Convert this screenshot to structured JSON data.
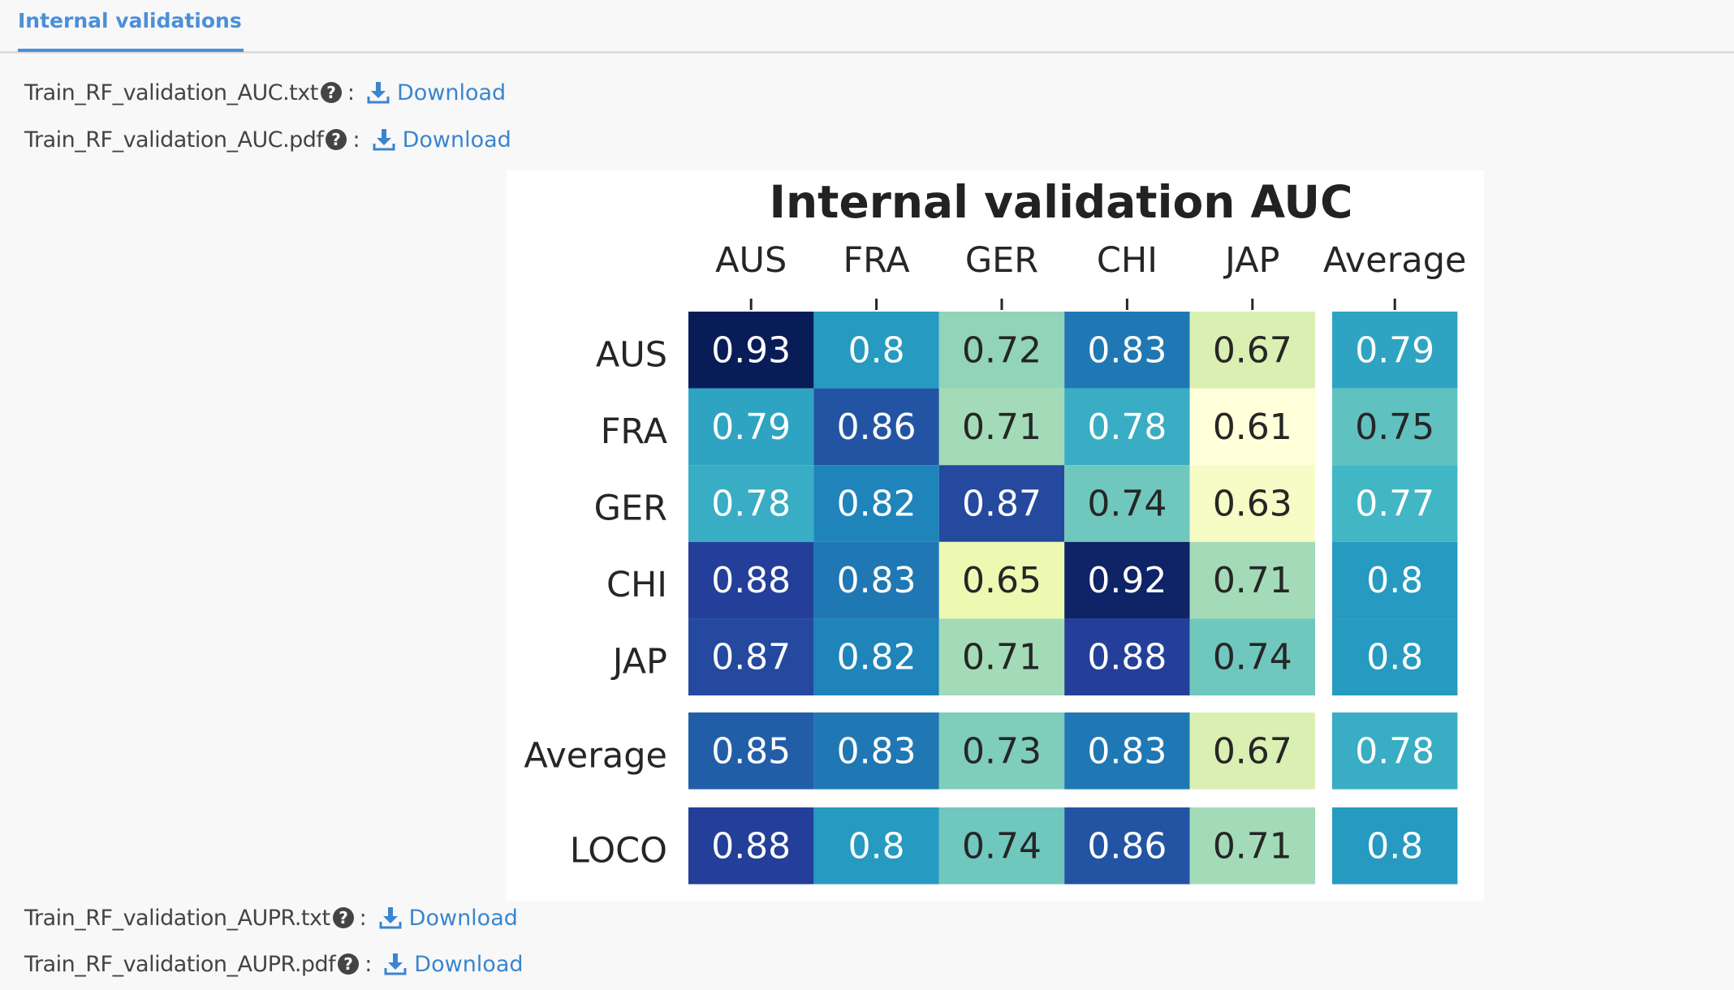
{
  "tabs": [
    {
      "label": "Internal validations",
      "active": true
    }
  ],
  "files": [
    {
      "name": "Train_RF_validation_AUC.txt",
      "link_label": "Download"
    },
    {
      "name": "Train_RF_validation_AUC.pdf",
      "link_label": "Download"
    },
    {
      "name": "Train_RF_validation_AUPR.txt",
      "link_label": "Download"
    },
    {
      "name": "Train_RF_validation_AUPR.pdf",
      "link_label": "Download"
    }
  ],
  "colon": ":",
  "colors": {
    "accent": "#4a90d9",
    "link": "#3a85cf",
    "colormap": "YlGnBu"
  },
  "chart_data": {
    "type": "heatmap",
    "title": "Internal validation AUC",
    "colormap": "YlGnBu",
    "columns": [
      "AUS",
      "FRA",
      "GER",
      "CHI",
      "JAP"
    ],
    "average_column_label": "Average",
    "rows": [
      "AUS",
      "FRA",
      "GER",
      "CHI",
      "JAP"
    ],
    "values": [
      [
        0.93,
        0.8,
        0.72,
        0.83,
        0.67
      ],
      [
        0.79,
        0.86,
        0.71,
        0.78,
        0.61
      ],
      [
        0.78,
        0.82,
        0.87,
        0.74,
        0.63
      ],
      [
        0.88,
        0.83,
        0.65,
        0.92,
        0.71
      ],
      [
        0.87,
        0.82,
        0.71,
        0.88,
        0.74
      ]
    ],
    "row_averages": [
      0.79,
      0.75,
      0.77,
      0.8,
      0.8
    ],
    "average_row": {
      "label": "Average",
      "values": [
        0.85,
        0.83,
        0.73,
        0.83,
        0.67
      ],
      "average": 0.78
    },
    "loco_row": {
      "label": "LOCO",
      "values": [
        0.88,
        0.8,
        0.74,
        0.86,
        0.71
      ],
      "average": 0.8
    },
    "value_range": [
      0.61,
      0.93
    ]
  }
}
